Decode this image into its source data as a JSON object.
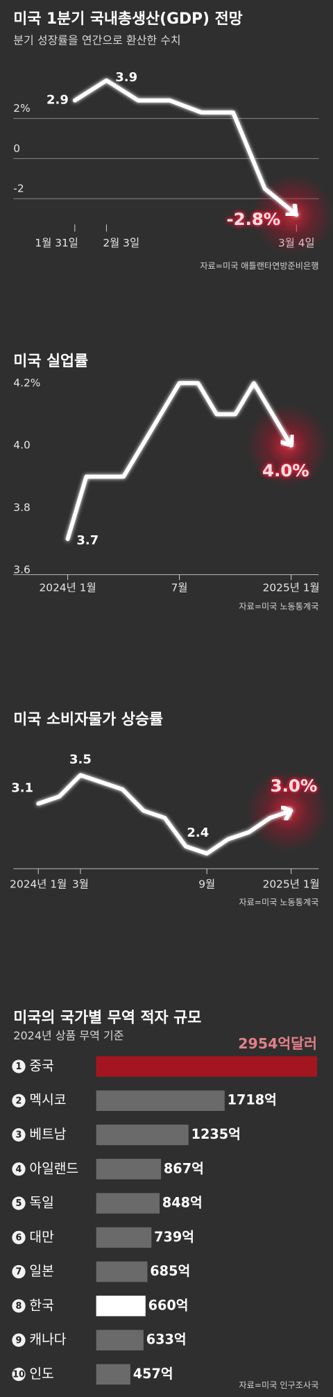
{
  "chart_data": [
    {
      "type": "line",
      "title": "미국 1분기 국내총생산(GDP) 전망",
      "subtitle": "분기 성장률을 연간으로 환산한 수치",
      "categories": [
        "1월 31일",
        "2월 3일",
        null,
        null,
        null,
        null,
        null,
        "3월 4일"
      ],
      "values": [
        2.9,
        3.9,
        2.9,
        2.9,
        2.3,
        2.3,
        -1.5,
        -2.8
      ],
      "value_labels": [
        "2.9",
        "3.9",
        null,
        null,
        null,
        null,
        null,
        "-2.8%"
      ],
      "ylim": [
        -3,
        4
      ],
      "yticks": [
        {
          "value": 2,
          "label": "2%"
        },
        0,
        -2
      ],
      "grid": true,
      "color": "#ffffff",
      "glow_color": "#e8243a",
      "source": "자료=미국 애틀랜타연방준비은행"
    },
    {
      "type": "line",
      "title": "미국 실업률",
      "categories": [
        "2024년 1월",
        null,
        null,
        null,
        null,
        null,
        "7월",
        null,
        null,
        null,
        null,
        null,
        "2025년 1월"
      ],
      "values": [
        3.7,
        3.9,
        3.9,
        3.9,
        4.0,
        4.1,
        4.2,
        4.2,
        4.1,
        4.1,
        4.2,
        4.1,
        4.0
      ],
      "value_labels": [
        "3.7",
        null,
        null,
        null,
        null,
        null,
        null,
        null,
        null,
        null,
        null,
        null,
        "4.0%"
      ],
      "ylim": [
        3.6,
        4.2
      ],
      "yticks": [
        {
          "value": 4.2,
          "label": "4.2%"
        },
        {
          "value": 4,
          "label": "4.0"
        },
        3.8,
        3.6
      ],
      "grid": false,
      "color": "#ffffff",
      "glow_color": "#e8243a",
      "source": "자료=미국 노동통계국"
    },
    {
      "type": "line",
      "title": "미국 소비자물가 상승률",
      "categories": [
        "2024년 1월",
        null,
        "3월",
        null,
        null,
        null,
        null,
        null,
        "9월",
        null,
        null,
        null,
        "2025년 1월"
      ],
      "values": [
        3.1,
        3.2,
        3.5,
        3.4,
        3.3,
        3.0,
        2.9,
        2.5,
        2.4,
        2.6,
        2.7,
        2.9,
        3.0
      ],
      "value_labels": [
        "3.1",
        null,
        "3.5",
        null,
        null,
        null,
        null,
        null,
        "2.4",
        null,
        null,
        null,
        "3.0%"
      ],
      "ylim": [
        2.2,
        3.6
      ],
      "grid": false,
      "color": "#ffffff",
      "glow_color": "#e8243a",
      "source": "자료=미국 노동통계국"
    },
    {
      "type": "barh",
      "title": "미국의 국가별 무역 적자 규모",
      "subtitle": "2024년 상품 무역 기준",
      "ranks": [
        1,
        2,
        3,
        4,
        5,
        6,
        7,
        8,
        9,
        10
      ],
      "categories": [
        "중국",
        "멕시코",
        "베트남",
        "아일랜드",
        "독일",
        "대만",
        "일본",
        "한국",
        "캐나다",
        "인도"
      ],
      "values": [
        2954,
        1718,
        1235,
        867,
        848,
        739,
        685,
        660,
        633,
        457
      ],
      "value_labels": [
        "2954억달러",
        "1718억",
        "1235억",
        "867억",
        "848억",
        "739억",
        "685억",
        "660억",
        "633억",
        "457억"
      ],
      "colors": [
        "#a3161f",
        "#6a6a6a",
        "#6a6a6a",
        "#6a6a6a",
        "#6a6a6a",
        "#6a6a6a",
        "#6a6a6a",
        "#ffffff",
        "#6a6a6a",
        "#6a6a6a"
      ],
      "xlim": [
        0,
        3000
      ],
      "source": "자료=미국 인구조사국"
    }
  ]
}
